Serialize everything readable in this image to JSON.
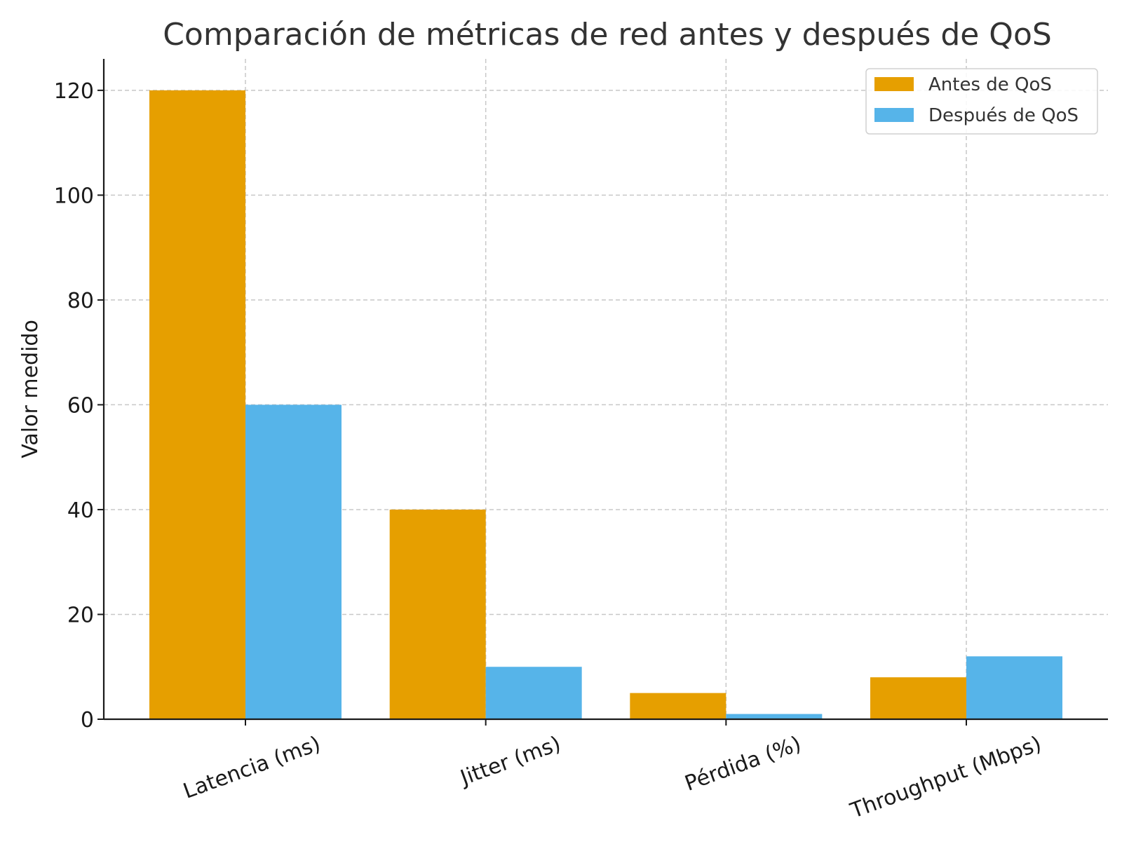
{
  "chart_data": {
    "type": "bar",
    "title": "Comparación de métricas de red antes y después de QoS",
    "xlabel": "",
    "ylabel": "Valor medido",
    "categories": [
      "Latencia (ms)",
      "Jitter (ms)",
      "Pérdida (%)",
      "Throughput (Mbps)"
    ],
    "series": [
      {
        "name": "Antes de QoS",
        "values": [
          120,
          40,
          5,
          8
        ],
        "color": "#E69F00"
      },
      {
        "name": "Después de QoS",
        "values": [
          60,
          10,
          1,
          12
        ],
        "color": "#56B4E9"
      }
    ],
    "ylim": [
      0,
      126
    ],
    "yticks": [
      0,
      20,
      40,
      60,
      80,
      100,
      120
    ],
    "grid": true,
    "legend_position": "top-right"
  }
}
